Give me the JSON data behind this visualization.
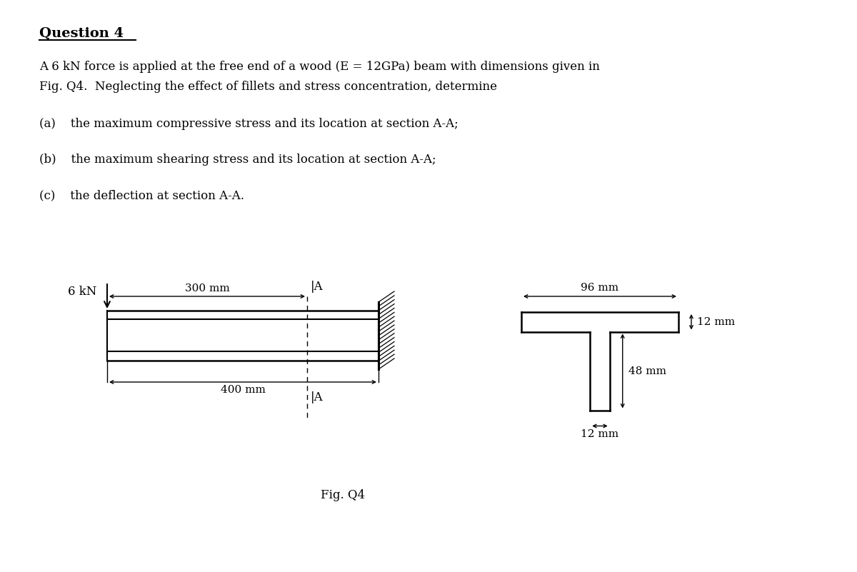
{
  "title": "Question 4",
  "bg_color": "#ffffff",
  "text_color": "#000000",
  "para_line1": "A 6 kN force is applied at the free end of a wood (E = 12GPa) beam with dimensions given in",
  "para_line2": "Fig. Q4.  Neglecting the effect of fillets and stress concentration, determine",
  "item_a": "(a)    the maximum compressive stress and its location at section A-A;",
  "item_b": "(b)    the maximum shearing stress and its location at section A-A;",
  "item_c": "(c)    the deflection at section A-A.",
  "fig_label": "Fig. Q4",
  "beam_label_300": "300 mm",
  "beam_label_400": "400 mm",
  "force_label": "6 kN",
  "dim_96": "96 mm",
  "dim_12_flange": "12 mm",
  "dim_48": "48 mm",
  "dim_12_web": "12 mm"
}
